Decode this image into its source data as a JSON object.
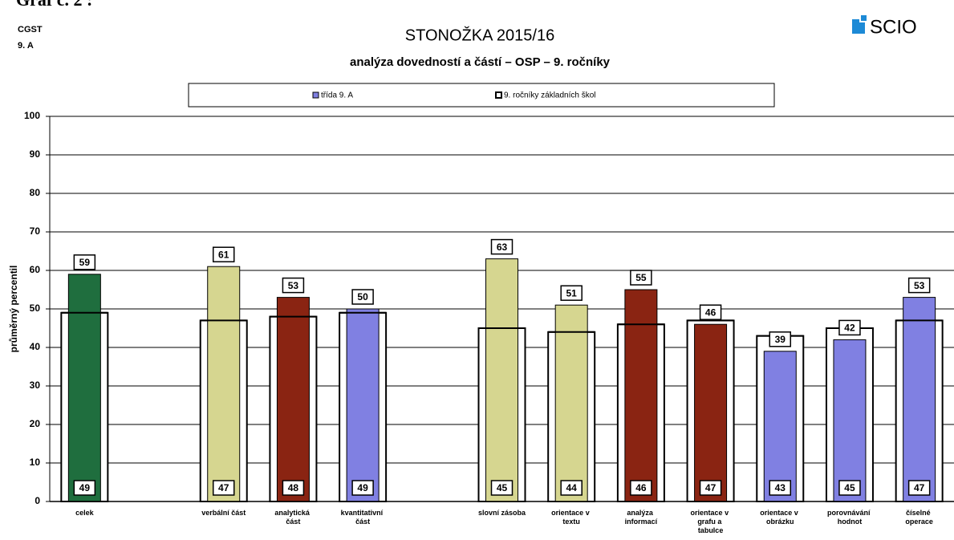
{
  "header": {
    "caption": "Graf č. 2 :",
    "school": "CGST",
    "class": "9. A",
    "logo": "SCIO"
  },
  "chart_data": {
    "type": "bar",
    "title": "STONOŽKA 2015/16",
    "subtitle": "analýza dovedností a částí – OSP – 9. ročníky",
    "y_label": "průměrný percentil",
    "categories": [
      "celek",
      null,
      "verbální část",
      "analytická část",
      "kvantitativní část",
      null,
      "slovní zásoba",
      "orientace v textu",
      "analýza informací",
      "orientace v grafu a tabulce",
      "orientace v obrázku",
      "porovnávání hodnot",
      "číselné operace"
    ],
    "series": [
      {
        "name": "třída 9. A",
        "color": "#7f7fe0",
        "colors": [
          "#1f6e3e",
          null,
          "#d6d690",
          "#8a2412",
          "#8080e2",
          null,
          "#d6d690",
          "#d6d690",
          "#8a2412",
          "#8a2412",
          "#8080e2",
          "#8080e2",
          "#8080e2"
        ],
        "values": [
          59,
          null,
          61,
          53,
          50,
          null,
          63,
          51,
          55,
          46,
          39,
          42,
          53
        ]
      },
      {
        "name": "9. ročníky základních škol",
        "color": "#ffffff",
        "values": [
          49,
          null,
          47,
          48,
          49,
          null,
          45,
          44,
          46,
          47,
          43,
          45,
          47
        ]
      }
    ],
    "ylim": [
      0,
      100
    ],
    "yticks": [
      0,
      10,
      20,
      30,
      40,
      50,
      60,
      70,
      80,
      90,
      100
    ],
    "grid": true
  }
}
